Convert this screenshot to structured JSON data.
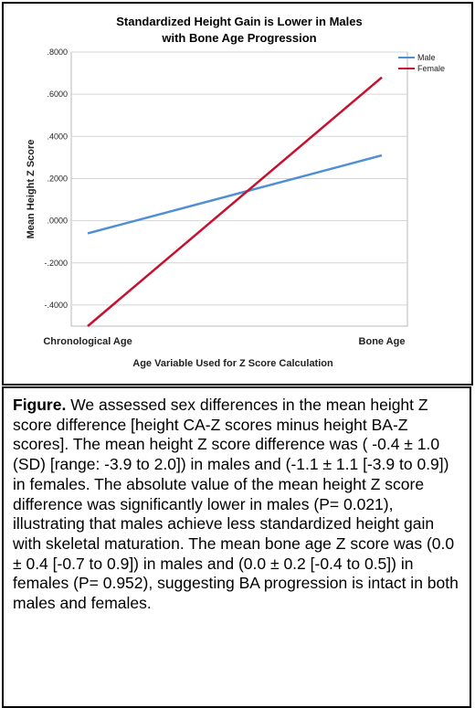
{
  "chart_data": {
    "type": "line",
    "title": [
      "Standardized Height Gain is Lower in Males",
      "with Bone Age Progression"
    ],
    "xlabel": "Age Variable Used for Z Score Calculation",
    "ylabel": "Mean Height Z Score",
    "categories": [
      "Chronological Age",
      "Bone Age"
    ],
    "yticks": [
      ".8000",
      ".6000",
      ".4000",
      ".2000",
      ".0000",
      "-.2000",
      "-.4000"
    ],
    "ylim": [
      -0.5,
      0.8
    ],
    "grid": true,
    "legend_position": "top-right",
    "series": [
      {
        "name": "Male",
        "values": [
          -0.06,
          0.31
        ],
        "color": "#4f8fd6"
      },
      {
        "name": "Female",
        "values": [
          -0.5,
          0.68
        ],
        "color": "#c8102e"
      }
    ]
  },
  "caption": {
    "label": "Figure.",
    "text": " We assessed sex differences in the mean height Z score difference [height CA-Z scores minus height BA-Z scores].  The mean height Z score difference was ( -0.4 ± 1.0 (SD) [range: -3.9 to 2.0]) in males and (-1.1 ± 1.1 [-3.9 to 0.9]) in females. The absolute value of the mean height Z score difference was significantly lower in males (P= 0.021), illustrating that males achieve less standardized height gain with skeletal maturation. The mean bone age Z score was (0.0 ± 0.4 [-0.7 to 0.9]) in males and (0.0 ± 0.2 [-0.4 to 0.5]) in females (P= 0.952), suggesting BA progression is intact in both males and females."
  }
}
